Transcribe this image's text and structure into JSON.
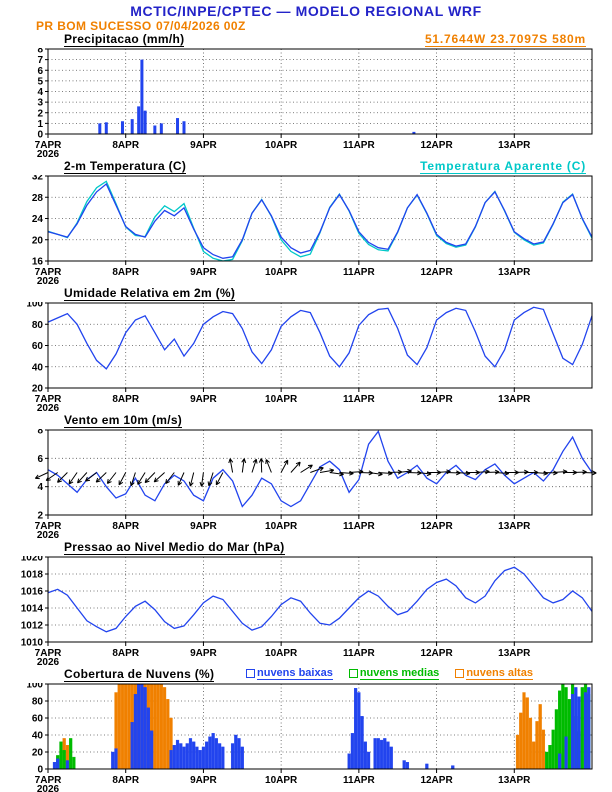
{
  "header": {
    "title": "MCTIC/INPE/CPTEC — MODELO REGIONAL WRF",
    "station": "PR BOM SUCESSO",
    "run": "07/04/2026 00Z",
    "coords": "51.7644W 23.7097S 580m"
  },
  "colors": {
    "header_blue": "#2323c8",
    "orange": "#f08000",
    "line_blue": "#2244ee",
    "cyan": "#00c8c8",
    "green": "#00bb00",
    "black": "#000000"
  },
  "x_axis": {
    "t_min": 0,
    "t_max": 168,
    "tick_step": 24,
    "tick_labels": [
      "7APR",
      "8APR",
      "9APR",
      "10APR",
      "11APR",
      "12APR",
      "13APR"
    ],
    "year_label": "2026"
  },
  "chart_data": [
    {
      "id": "precipitation",
      "type": "bar",
      "title": "Precipitacao (mm/h)",
      "ylabel": "mm/h",
      "ylim": [
        0,
        8
      ],
      "yticks": [
        0,
        1,
        2,
        3,
        4,
        5,
        6,
        7,
        8
      ],
      "color": "line_blue",
      "points": [
        [
          16,
          1.0
        ],
        [
          18,
          1.1
        ],
        [
          23,
          1.2
        ],
        [
          26,
          1.4
        ],
        [
          28,
          2.6
        ],
        [
          29,
          7.0
        ],
        [
          30,
          2.2
        ],
        [
          33,
          0.8
        ],
        [
          35,
          1.0
        ],
        [
          40,
          1.5
        ],
        [
          42,
          1.2
        ],
        [
          113,
          0.2
        ]
      ]
    },
    {
      "id": "temperature",
      "type": "line",
      "title": "2-m Temperatura (C)",
      "right_label": "Temperatura Aparente (C)",
      "ylim": [
        16,
        32
      ],
      "yticks": [
        16,
        20,
        24,
        28,
        32
      ],
      "t_step": 3,
      "series": [
        {
          "name": "Temperatura Aparente (C)",
          "color": "cyan",
          "values": [
            21.6,
            21.0,
            20.4,
            23.2,
            27.2,
            29.8,
            31.0,
            26.8,
            22.4,
            20.8,
            20.6,
            24.3,
            26.4,
            25.3,
            26.8,
            22.2,
            17.8,
            16.5,
            16.0,
            16.3,
            19.8,
            25.0,
            27.6,
            24.4,
            20.0,
            17.8,
            16.8,
            17.3,
            21.3,
            26.1,
            28.6,
            25.4,
            21.2,
            19.1,
            18.1,
            17.9,
            21.4,
            26.0,
            28.4,
            24.9,
            20.8,
            19.3,
            18.6,
            19.0,
            22.4,
            27.0,
            29.1,
            25.4,
            21.4,
            20.0,
            19.0,
            19.4,
            22.9,
            27.1,
            28.6,
            23.9,
            20.3
          ]
        },
        {
          "name": "2-m Temperatura (C)",
          "color": "line_blue",
          "values": [
            21.5,
            21.0,
            20.5,
            23.0,
            26.5,
            29.0,
            30.5,
            26.5,
            22.5,
            21.0,
            20.5,
            23.5,
            25.5,
            24.5,
            26.0,
            22.0,
            18.5,
            17.2,
            16.5,
            16.8,
            20.0,
            25.0,
            27.5,
            24.5,
            20.5,
            18.5,
            17.5,
            18.0,
            21.5,
            26.0,
            28.5,
            25.5,
            21.5,
            19.5,
            18.5,
            18.2,
            21.5,
            26.0,
            28.5,
            25.0,
            21.0,
            19.5,
            18.8,
            19.2,
            22.5,
            27.0,
            29.0,
            25.5,
            21.5,
            20.2,
            19.2,
            19.6,
            23.0,
            27.0,
            28.5,
            24.0,
            20.5
          ]
        }
      ]
    },
    {
      "id": "humidity",
      "type": "line",
      "title": "Umidade Relativa em 2m (%)",
      "ylim": [
        20,
        100
      ],
      "yticks": [
        20,
        40,
        60,
        80,
        100
      ],
      "t_step": 3,
      "series": [
        {
          "name": "Umidade Relativa",
          "color": "line_blue",
          "values": [
            82,
            86,
            90,
            80,
            62,
            46,
            38,
            52,
            72,
            84,
            88,
            72,
            56,
            66,
            50,
            62,
            80,
            87,
            92,
            90,
            76,
            54,
            43,
            56,
            78,
            87,
            93,
            91,
            72,
            50,
            40,
            53,
            79,
            89,
            94,
            95,
            76,
            51,
            42,
            58,
            84,
            91,
            95,
            93,
            73,
            50,
            40,
            56,
            84,
            91,
            96,
            94,
            71,
            48,
            42,
            61,
            88
          ]
        }
      ]
    },
    {
      "id": "wind",
      "type": "line",
      "title": "Vento em 10m (m/s)",
      "ylim": [
        2,
        8
      ],
      "yticks": [
        2,
        4,
        6,
        8
      ],
      "t_step": 3,
      "series": [
        {
          "name": "Vento 10m",
          "color": "line_blue",
          "values": [
            5.2,
            4.8,
            4.2,
            3.6,
            4.5,
            5.0,
            4.0,
            3.2,
            3.5,
            4.6,
            3.4,
            3.0,
            4.2,
            4.8,
            4.4,
            3.4,
            3.0,
            4.6,
            5.2,
            4.4,
            2.6,
            3.4,
            4.6,
            4.2,
            3.0,
            2.6,
            3.0,
            4.2,
            5.4,
            5.8,
            5.2,
            3.6,
            4.5,
            7.0,
            7.9,
            5.8,
            4.6,
            5.0,
            5.5,
            4.6,
            4.2,
            5.0,
            5.5,
            4.8,
            4.5,
            5.2,
            5.6,
            4.8,
            4.2,
            4.6,
            5.0,
            4.4,
            5.2,
            6.5,
            7.5,
            6.0,
            5.0
          ]
        }
      ],
      "barbs": {
        "y": 5,
        "t_step": 3,
        "length": 14,
        "angles": [
          205,
          215,
          225,
          235,
          228,
          218,
          224,
          232,
          242,
          252,
          238,
          226,
          222,
          232,
          246,
          256,
          262,
          252,
          242,
          100,
          82,
          72,
          92,
          112,
          62,
          48,
          32,
          20,
          10,
          352,
          356,
          4,
          358,
          352,
          356,
          2,
          6,
          358,
          354,
          0,
          4,
          358,
          356,
          0,
          4,
          2,
          356,
          0,
          2,
          0,
          356,
          358,
          4,
          0,
          2,
          358
        ]
      }
    },
    {
      "id": "pressure",
      "type": "line",
      "title": "Pressao ao Nivel Medio do Mar (hPa)",
      "ylim": [
        1010,
        1020
      ],
      "yticks": [
        1010,
        1012,
        1014,
        1016,
        1018,
        1020
      ],
      "t_step": 3,
      "series": [
        {
          "name": "Pressao nivel do mar",
          "color": "line_blue",
          "values": [
            1015.8,
            1016.2,
            1015.5,
            1014.0,
            1012.5,
            1011.8,
            1011.2,
            1011.6,
            1013.0,
            1014.2,
            1014.8,
            1013.8,
            1012.4,
            1011.6,
            1011.9,
            1013.2,
            1014.6,
            1015.4,
            1015.0,
            1013.6,
            1012.2,
            1011.4,
            1011.8,
            1013.0,
            1014.4,
            1015.2,
            1014.8,
            1013.4,
            1012.2,
            1012.0,
            1012.8,
            1014.0,
            1015.2,
            1016.0,
            1015.4,
            1014.2,
            1013.2,
            1013.6,
            1014.8,
            1016.2,
            1017.0,
            1017.4,
            1016.6,
            1015.2,
            1014.6,
            1015.4,
            1017.2,
            1018.4,
            1018.8,
            1018.0,
            1016.6,
            1015.2,
            1014.6,
            1015.0,
            1016.0,
            1015.2,
            1013.6
          ]
        }
      ]
    },
    {
      "id": "clouds",
      "type": "multibar",
      "title": "Cobertura de Nuvens (%)",
      "ylim": [
        0,
        100
      ],
      "yticks": [
        0,
        20,
        40,
        60,
        80,
        100
      ],
      "legend": [
        {
          "label": "nuvens baixas",
          "color": "line_blue"
        },
        {
          "label": "nuvens medias",
          "color": "green"
        },
        {
          "label": "nuvens altas",
          "color": "orange"
        }
      ],
      "series": [
        {
          "name": "nuvens altas",
          "color": "orange",
          "points": [
            [
              5,
              36
            ],
            [
              6,
              28
            ],
            [
              21,
              90
            ],
            [
              22,
              100
            ],
            [
              23,
              100
            ],
            [
              24,
              100
            ],
            [
              25,
              100
            ],
            [
              26,
              100
            ],
            [
              27,
              100
            ],
            [
              28,
              100
            ],
            [
              29,
              100
            ],
            [
              30,
              100
            ],
            [
              31,
              100
            ],
            [
              32,
              100
            ],
            [
              33,
              100
            ],
            [
              34,
              100
            ],
            [
              35,
              100
            ],
            [
              36,
              96
            ],
            [
              37,
              82
            ],
            [
              38,
              60
            ],
            [
              145,
              40
            ],
            [
              146,
              66
            ],
            [
              147,
              90
            ],
            [
              148,
              84
            ],
            [
              149,
              60
            ],
            [
              150,
              32
            ],
            [
              151,
              56
            ],
            [
              152,
              76
            ],
            [
              153,
              46
            ]
          ]
        },
        {
          "name": "nuvens medias",
          "color": "green",
          "points": [
            [
              3,
              16
            ],
            [
              4,
              32
            ],
            [
              5,
              22
            ],
            [
              7,
              36
            ],
            [
              8,
              14
            ],
            [
              154,
              20
            ],
            [
              155,
              28
            ],
            [
              156,
              46
            ],
            [
              157,
              70
            ],
            [
              158,
              92
            ],
            [
              159,
              100
            ],
            [
              160,
              96
            ],
            [
              161,
              82
            ],
            [
              162,
              100
            ],
            [
              163,
              62
            ],
            [
              164,
              44
            ],
            [
              165,
              96
            ],
            [
              166,
              100
            ],
            [
              167,
              88
            ]
          ]
        },
        {
          "name": "nuvens baixas",
          "color": "line_blue",
          "points": [
            [
              2,
              8
            ],
            [
              3,
              12
            ],
            [
              6,
              10
            ],
            [
              20,
              20
            ],
            [
              21,
              24
            ],
            [
              26,
              55
            ],
            [
              27,
              88
            ],
            [
              28,
              100
            ],
            [
              29,
              100
            ],
            [
              30,
              96
            ],
            [
              31,
              72
            ],
            [
              32,
              45
            ],
            [
              38,
              22
            ],
            [
              39,
              28
            ],
            [
              40,
              34
            ],
            [
              41,
              30
            ],
            [
              42,
              26
            ],
            [
              43,
              30
            ],
            [
              44,
              36
            ],
            [
              45,
              32
            ],
            [
              46,
              26
            ],
            [
              47,
              22
            ],
            [
              48,
              26
            ],
            [
              49,
              32
            ],
            [
              50,
              38
            ],
            [
              51,
              42
            ],
            [
              52,
              36
            ],
            [
              53,
              30
            ],
            [
              54,
              26
            ],
            [
              57,
              30
            ],
            [
              58,
              40
            ],
            [
              59,
              36
            ],
            [
              60,
              26
            ],
            [
              93,
              18
            ],
            [
              94,
              42
            ],
            [
              95,
              95
            ],
            [
              96,
              90
            ],
            [
              97,
              62
            ],
            [
              98,
              32
            ],
            [
              99,
              20
            ],
            [
              101,
              36
            ],
            [
              102,
              36
            ],
            [
              103,
              34
            ],
            [
              104,
              36
            ],
            [
              105,
              32
            ],
            [
              106,
              26
            ],
            [
              110,
              10
            ],
            [
              111,
              8
            ],
            [
              117,
              6
            ],
            [
              125,
              4
            ],
            [
              158,
              18
            ],
            [
              160,
              38
            ],
            [
              162,
              88
            ],
            [
              163,
              96
            ],
            [
              164,
              85
            ],
            [
              166,
              90
            ],
            [
              167,
              96
            ]
          ]
        }
      ]
    }
  ]
}
